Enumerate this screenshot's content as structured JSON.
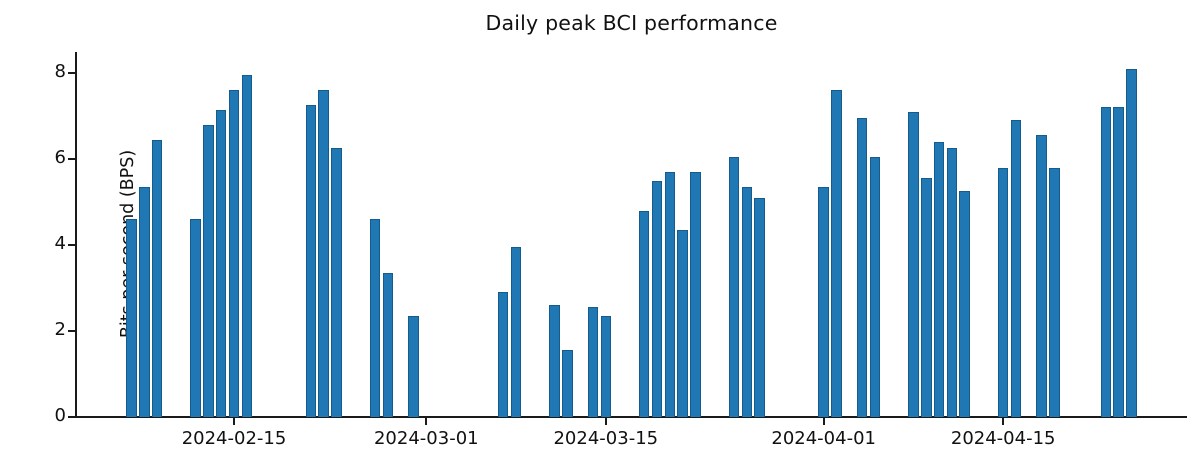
{
  "chart_data": {
    "type": "bar",
    "title": "Daily peak BCI performance",
    "xlabel": "",
    "ylabel": "Bits per second (BPS)",
    "bar_color": "#1f77b4",
    "bar_edge_color": "#155c8d",
    "axis_color": "#1a1a1a",
    "ylim": [
      0,
      8.5
    ],
    "y_ticks": [
      0,
      2,
      4,
      6,
      8
    ],
    "x_ticks": [
      "2024-02-15",
      "2024-03-01",
      "2024-03-15",
      "2024-04-01",
      "2024-04-15"
    ],
    "legend": null,
    "grid": false,
    "points": [
      {
        "date": "2024-02-07",
        "value": 4.6
      },
      {
        "date": "2024-02-08",
        "value": 5.35
      },
      {
        "date": "2024-02-09",
        "value": 6.45
      },
      {
        "date": "2024-02-12",
        "value": 4.6
      },
      {
        "date": "2024-02-13",
        "value": 6.8
      },
      {
        "date": "2024-02-14",
        "value": 7.15
      },
      {
        "date": "2024-02-15",
        "value": 7.6
      },
      {
        "date": "2024-02-16",
        "value": 7.95
      },
      {
        "date": "2024-02-21",
        "value": 7.25
      },
      {
        "date": "2024-02-22",
        "value": 7.6
      },
      {
        "date": "2024-02-23",
        "value": 6.25
      },
      {
        "date": "2024-02-26",
        "value": 4.6
      },
      {
        "date": "2024-02-27",
        "value": 3.35
      },
      {
        "date": "2024-02-29",
        "value": 2.35
      },
      {
        "date": "2024-03-07",
        "value": 2.9
      },
      {
        "date": "2024-03-08",
        "value": 3.95
      },
      {
        "date": "2024-03-11",
        "value": 2.6
      },
      {
        "date": "2024-03-12",
        "value": 1.55
      },
      {
        "date": "2024-03-14",
        "value": 2.55
      },
      {
        "date": "2024-03-15",
        "value": 2.35
      },
      {
        "date": "2024-03-18",
        "value": 4.8
      },
      {
        "date": "2024-03-19",
        "value": 5.5
      },
      {
        "date": "2024-03-20",
        "value": 5.7
      },
      {
        "date": "2024-03-21",
        "value": 4.35
      },
      {
        "date": "2024-03-22",
        "value": 5.7
      },
      {
        "date": "2024-03-25",
        "value": 6.05
      },
      {
        "date": "2024-03-26",
        "value": 5.35
      },
      {
        "date": "2024-03-27",
        "value": 5.1
      },
      {
        "date": "2024-04-01",
        "value": 5.35
      },
      {
        "date": "2024-04-02",
        "value": 7.6
      },
      {
        "date": "2024-04-04",
        "value": 6.95
      },
      {
        "date": "2024-04-05",
        "value": 6.05
      },
      {
        "date": "2024-04-08",
        "value": 7.1
      },
      {
        "date": "2024-04-09",
        "value": 5.55
      },
      {
        "date": "2024-04-10",
        "value": 6.4
      },
      {
        "date": "2024-04-11",
        "value": 6.25
      },
      {
        "date": "2024-04-12",
        "value": 5.25
      },
      {
        "date": "2024-04-15",
        "value": 5.8
      },
      {
        "date": "2024-04-16",
        "value": 6.9
      },
      {
        "date": "2024-04-18",
        "value": 6.55
      },
      {
        "date": "2024-04-19",
        "value": 5.8
      },
      {
        "date": "2024-04-23",
        "value": 7.2
      },
      {
        "date": "2024-04-24",
        "value": 7.2
      },
      {
        "date": "2024-04-25",
        "value": 8.1
      }
    ]
  }
}
